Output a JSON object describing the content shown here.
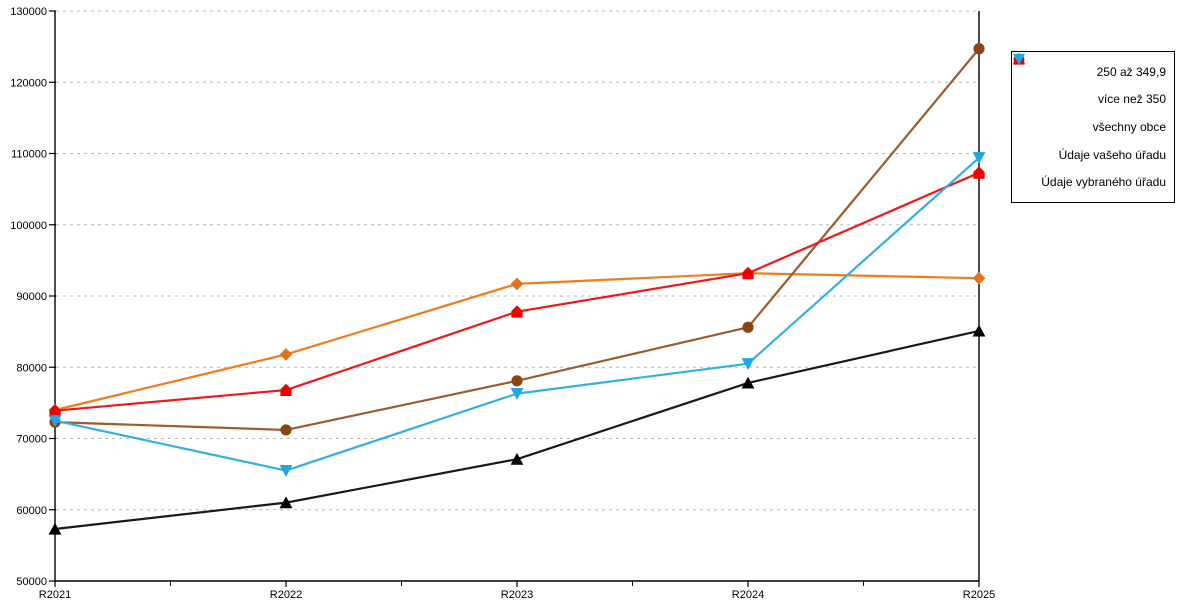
{
  "chart_data": {
    "type": "line",
    "title": "",
    "xlabel": "",
    "ylabel": "",
    "categories": [
      "R2021",
      "R2022",
      "R2023",
      "R2024",
      "R2025"
    ],
    "y_axis": {
      "min": 50000,
      "max": 130000,
      "step": 10000,
      "tick_labels": [
        "50000",
        "60000",
        "70000",
        "80000",
        "90000",
        "100000",
        "110000",
        "120000",
        "130000"
      ]
    },
    "grid": "horizontal-dashed",
    "grid_color": "#b9b9b9",
    "axis_color": "#000000",
    "legend_position": "right",
    "series": [
      {
        "name": "250 až 349,9",
        "marker": "diamond",
        "color": "#ee7d1d",
        "marker_color": "#e2711a",
        "values": [
          74000,
          81800,
          91700,
          93200,
          92500
        ]
      },
      {
        "name": "více než 350",
        "marker": "circle",
        "color": "#a05a2b",
        "marker_color": "#8b4513",
        "values": [
          72300,
          71200,
          78100,
          85600,
          124700
        ]
      },
      {
        "name": "všechny obce",
        "marker": "triangle-up",
        "color": "#1a1a1a",
        "marker_color": "#000000",
        "values": [
          57300,
          61000,
          67100,
          77800,
          85100
        ]
      },
      {
        "name": "Údaje vašeho úřadu",
        "marker": "pentagon",
        "color": "#f21717",
        "marker_color": "#ee0000",
        "values": [
          73900,
          76800,
          87800,
          93200,
          107300
        ]
      },
      {
        "name": "Údaje vybraného úřadu",
        "marker": "triangle-down",
        "color": "#30b0e6",
        "marker_color": "#1ea7e2",
        "values": [
          72500,
          65500,
          76300,
          80500,
          109400
        ]
      }
    ]
  }
}
